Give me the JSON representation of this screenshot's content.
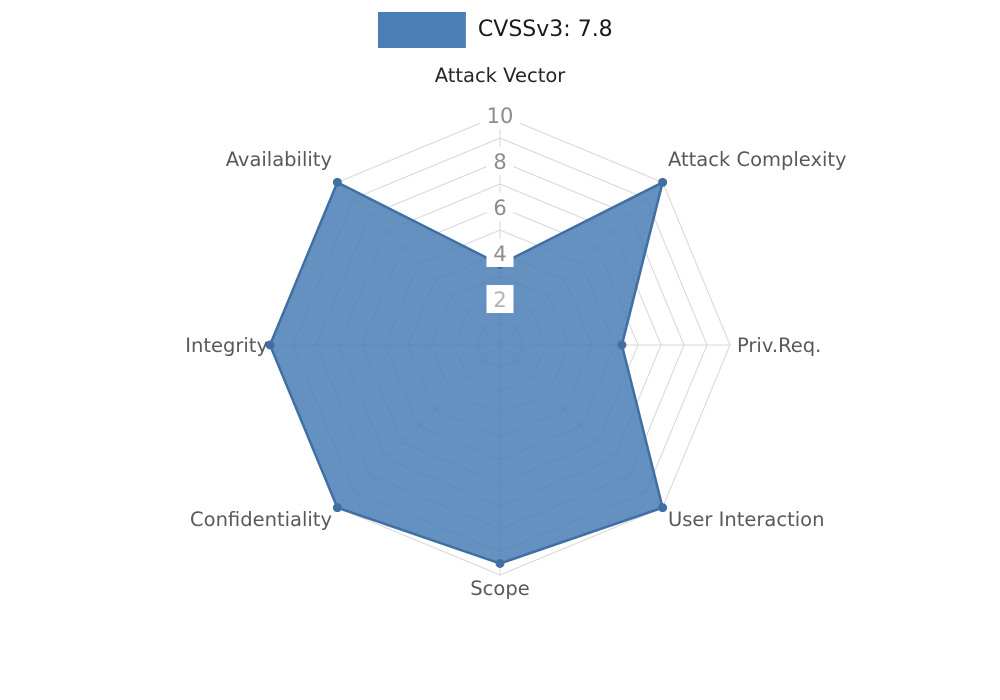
{
  "legend": {
    "label": "CVSSv3: 7.8",
    "swatch_color": "#4a7eb5"
  },
  "chart_data": {
    "type": "radar",
    "title": "CVSSv3: 7.8",
    "categories": [
      "Attack Vector",
      "Attack Complexity",
      "Priv.Req.",
      "User Interaction",
      "Scope",
      "Confidentiality",
      "Integrity",
      "Availability"
    ],
    "series": [
      {
        "name": "CVSSv3: 7.8",
        "values": [
          3.5,
          10,
          5.3,
          10,
          9.5,
          10,
          10,
          10
        ]
      }
    ],
    "radial_ticks": [
      2,
      4,
      6,
      8,
      10
    ],
    "r_range": [
      0,
      10
    ],
    "grid": true,
    "legend_position": "top-center",
    "colors": {
      "fill": "#4a7eb5",
      "stroke": "#3f6fa3",
      "grid": "#d7d7d7",
      "tick_label": "#8c8c8c",
      "tick_label_light": "#b3b3b3",
      "axis_label": "#595959",
      "axis_label_top": "#262626"
    }
  }
}
